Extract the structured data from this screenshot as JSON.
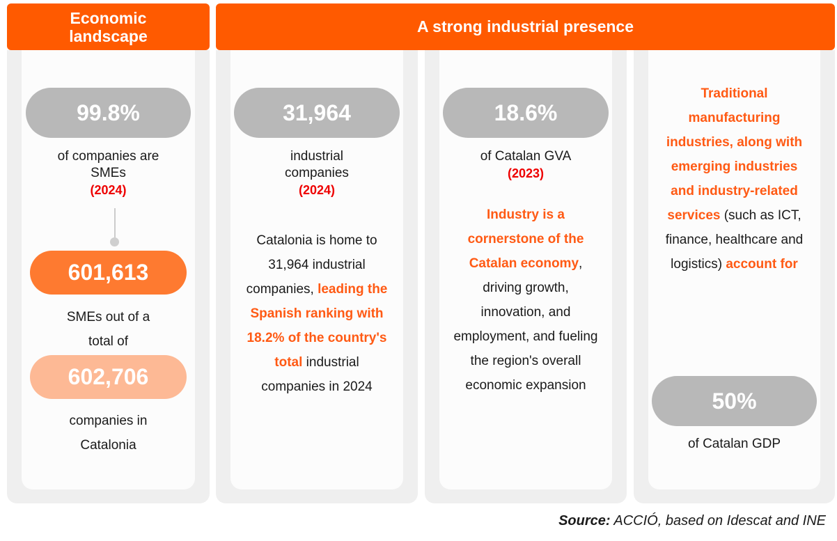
{
  "headers": {
    "economic": "Economic landscape",
    "industrial": "A strong industrial presence"
  },
  "colors": {
    "header_orange": "#ff5a00",
    "pill_gray": "#b8b8b8",
    "pill_orange": "#fe7a30",
    "pill_light_orange": "#fdb995",
    "highlight_orange": "#ff5a14",
    "year_red": "#ee0000"
  },
  "economic": {
    "stat1_value": "99.8%",
    "stat1_caption_l1": "of companies are",
    "stat1_caption_l2": "SMEs",
    "stat1_year": "(2024)",
    "stat2_value": "601,613",
    "stat2_caption_l1": "SMEs out of a",
    "stat2_caption_l2": "total of",
    "stat3_value": "602,706",
    "stat3_caption_l1": "companies in",
    "stat3_caption_l2": "Catalonia"
  },
  "industrial_companies": {
    "value": "31,964",
    "caption_l1": "industrial",
    "caption_l2": "companies",
    "year": "(2024)",
    "body_pre": "Catalonia is home to 31,964 industrial companies, ",
    "body_highlight": "leading the Spanish ranking with 18.2% of the country's total",
    "body_post": " industrial companies in 2024"
  },
  "gva": {
    "value": "18.6%",
    "caption": "of Catalan GVA",
    "year": "(2023)",
    "body_highlight": "Industry is a cornerstone of the Catalan economy",
    "body_post": ", driving growth, innovation, and employment, and fueling the region's overall economic expansion"
  },
  "gdp": {
    "body_highlight1": "Traditional manufacturing industries, along with emerging industries and industry-related services",
    "body_mid": " (such as ICT, finance, healthcare and logistics) ",
    "body_highlight2": "account for",
    "value": "50%",
    "caption": "of Catalan GDP"
  },
  "source": {
    "label": "Source:",
    "text": " ACCIÓ, based on Idescat and INE"
  }
}
